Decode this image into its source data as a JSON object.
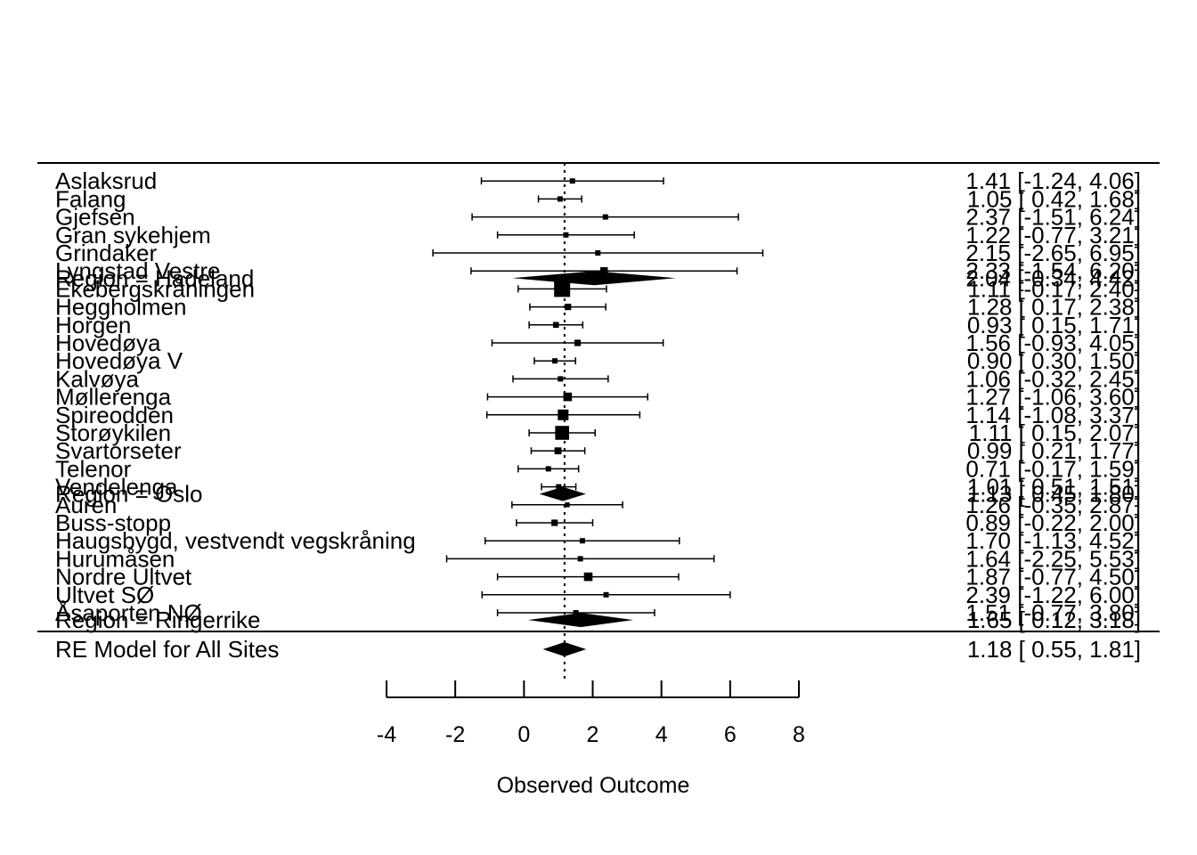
{
  "chart_data": {
    "type": "forest",
    "xlabel": "Observed Outcome",
    "xlim": [
      -4,
      8
    ],
    "xticks": [
      -4,
      -2,
      0,
      2,
      4,
      6,
      8
    ],
    "reference_line": 1.18,
    "studies": [
      {
        "label": "Aslaksrud",
        "est": 1.41,
        "lo": -1.24,
        "hi": 4.06,
        "ci_text": "1.41 [-1.24, 4.06]",
        "row": 1.0,
        "weight": 1.0
      },
      {
        "label": "Falang",
        "est": 1.05,
        "lo": 0.42,
        "hi": 1.68,
        "ci_text": "1.05 [ 0.42, 1.68]",
        "row": 2.0,
        "weight": 1.0
      },
      {
        "label": "Gjefsen",
        "est": 2.37,
        "lo": -1.51,
        "hi": 6.24,
        "ci_text": "2.37 [-1.51, 6.24]",
        "row": 3.0,
        "weight": 1.0
      },
      {
        "label": "Gran sykehjem",
        "est": 1.22,
        "lo": -0.77,
        "hi": 3.21,
        "ci_text": "1.22 [-0.77, 3.21]",
        "row": 4.0,
        "weight": 1.0
      },
      {
        "label": "Grindaker",
        "est": 2.15,
        "lo": -2.65,
        "hi": 6.95,
        "ci_text": "2.15 [-2.65, 6.95]",
        "row": 5.0,
        "weight": 1.0
      },
      {
        "label": "Lyngstad Vestre",
        "est": 2.33,
        "lo": -1.54,
        "hi": 6.2,
        "ci_text": "2.33 [-1.54, 6.20]",
        "row": 6.0,
        "weight": 1.4
      },
      {
        "label": "Ekebergskråningen",
        "est": 1.11,
        "lo": -0.17,
        "hi": 2.4,
        "ci_text": "1.11 [-0.17, 2.40]",
        "row": 7.0,
        "weight": 3.0
      },
      {
        "label": "Heggholmen",
        "est": 1.28,
        "lo": 0.17,
        "hi": 2.38,
        "ci_text": "1.28 [ 0.17, 2.38]",
        "row": 8.0,
        "weight": 1.2
      },
      {
        "label": "Horgen",
        "est": 0.93,
        "lo": 0.15,
        "hi": 1.71,
        "ci_text": "0.93 [ 0.15, 1.71]",
        "row": 9.0,
        "weight": 1.1
      },
      {
        "label": "Hovedøya",
        "est": 1.56,
        "lo": -0.93,
        "hi": 4.05,
        "ci_text": "1.56 [-0.93, 4.05]",
        "row": 10.0,
        "weight": 1.2
      },
      {
        "label": "Hovedøya V",
        "est": 0.9,
        "lo": 0.3,
        "hi": 1.5,
        "ci_text": "0.90 [ 0.30, 1.50]",
        "row": 11.0,
        "weight": 1.0
      },
      {
        "label": "Kalvøya",
        "est": 1.06,
        "lo": -0.32,
        "hi": 2.45,
        "ci_text": "1.06 [-0.32, 2.45]",
        "row": 12.0,
        "weight": 1.0
      },
      {
        "label": "Møllerenga",
        "est": 1.27,
        "lo": -1.06,
        "hi": 3.6,
        "ci_text": "1.27 [-1.06, 3.60]",
        "row": 13.0,
        "weight": 1.6
      },
      {
        "label": "Spireodden",
        "est": 1.14,
        "lo": -1.08,
        "hi": 3.37,
        "ci_text": "1.14 [-1.08, 3.37]",
        "row": 14.0,
        "weight": 2.0
      },
      {
        "label": "Storøykilen",
        "est": 1.11,
        "lo": 0.15,
        "hi": 2.07,
        "ci_text": "1.11 [ 0.15, 2.07]",
        "row": 15.0,
        "weight": 2.6
      },
      {
        "label": "Svartorseter",
        "est": 0.99,
        "lo": 0.21,
        "hi": 1.77,
        "ci_text": "0.99 [ 0.21, 1.77]",
        "row": 16.0,
        "weight": 1.3
      },
      {
        "label": "Telenor",
        "est": 0.71,
        "lo": -0.17,
        "hi": 1.59,
        "ci_text": "0.71 [-0.17, 1.59]",
        "row": 17.0,
        "weight": 1.0
      },
      {
        "label": "Vendelenga",
        "est": 1.01,
        "lo": 0.51,
        "hi": 1.51,
        "ci_text": "1.01 [ 0.51, 1.51]",
        "row": 18.0,
        "weight": 1.0
      },
      {
        "label": "Auren",
        "est": 1.26,
        "lo": -0.35,
        "hi": 2.87,
        "ci_text": "1.26 [-0.35, 2.87]",
        "row": 19.0,
        "weight": 0.9
      },
      {
        "label": "Buss-stopp",
        "est": 0.89,
        "lo": -0.22,
        "hi": 2.0,
        "ci_text": "0.89 [-0.22, 2.00]",
        "row": 20.0,
        "weight": 1.2
      },
      {
        "label": "Haugsbygd, vestvendt vegskråning",
        "est": 1.7,
        "lo": -1.13,
        "hi": 4.52,
        "ci_text": "1.70 [-1.13, 4.52]",
        "row": 21.0,
        "weight": 1.0
      },
      {
        "label": "Hurumåsen",
        "est": 1.64,
        "lo": -2.25,
        "hi": 5.53,
        "ci_text": "1.64 [-2.25, 5.53]",
        "row": 22.0,
        "weight": 1.0
      },
      {
        "label": "Nordre Ultvet",
        "est": 1.87,
        "lo": -0.77,
        "hi": 4.5,
        "ci_text": "1.87 [-0.77, 4.50]",
        "row": 23.0,
        "weight": 1.6
      },
      {
        "label": "Ultvet SØ",
        "est": 2.39,
        "lo": -1.22,
        "hi": 6.0,
        "ci_text": "2.39 [-1.22, 6.00]",
        "row": 24.0,
        "weight": 1.0
      },
      {
        "label": "Åsaporten NØ",
        "est": 1.51,
        "lo": -0.77,
        "hi": 3.8,
        "ci_text": "1.51 [-0.77, 3.80]",
        "row": 25.0,
        "weight": 1.0
      }
    ],
    "subgroups": [
      {
        "label": "Region = Hadeland",
        "est": 2.04,
        "lo": -0.34,
        "hi": 4.42,
        "ci_text": "2.04 [-0.34, 4.42]",
        "row": 6.4
      },
      {
        "label": "Region = Oslo",
        "est": 1.13,
        "lo": 0.45,
        "hi": 1.8,
        "ci_text": "1.13 [ 0.45, 1.80]",
        "row": 18.4
      },
      {
        "label": "Region = Ringerrike",
        "est": 1.65,
        "lo": 0.12,
        "hi": 3.18,
        "ci_text": "1.65 [ 0.12, 3.18]",
        "row": 25.4
      }
    ],
    "overall": {
      "label": "RE Model for All Sites",
      "est": 1.18,
      "lo": 0.55,
      "hi": 1.81,
      "ci_text": "1.18 [ 0.55, 1.81]"
    }
  }
}
